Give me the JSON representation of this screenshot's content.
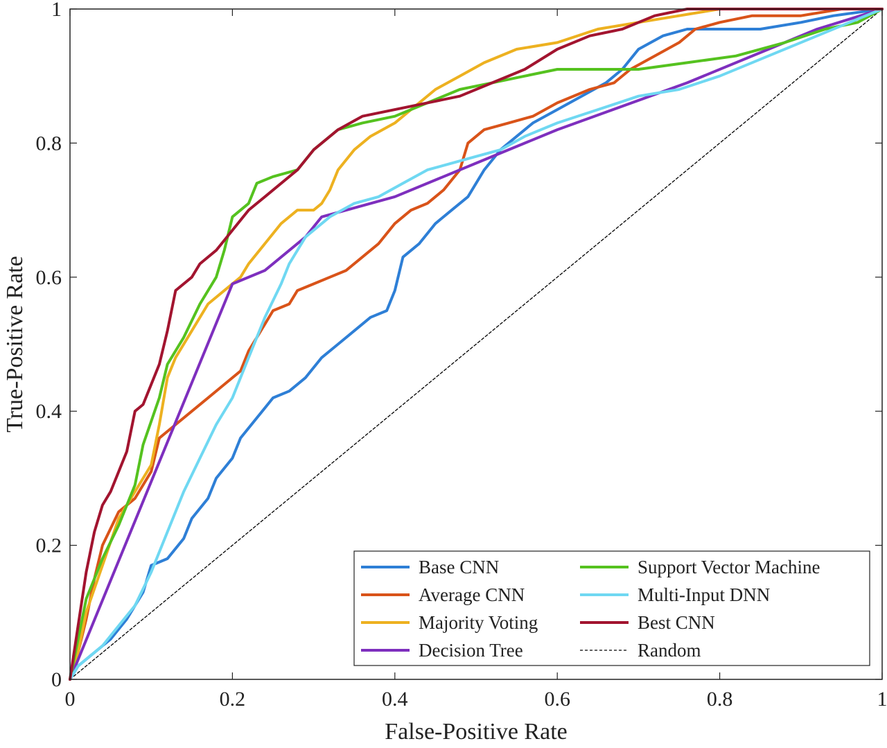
{
  "chart_data": {
    "type": "line",
    "title": "",
    "xlabel": "False-Positive Rate",
    "ylabel": "True-Positive Rate",
    "xlim": [
      0,
      1
    ],
    "ylim": [
      0,
      1
    ],
    "xticks": [
      "0",
      "0.2",
      "0.4",
      "0.6",
      "0.8",
      "1"
    ],
    "yticks": [
      "0",
      "0.2",
      "0.4",
      "0.6",
      "0.8",
      "1"
    ],
    "grid": false,
    "legend_position": "bottom-right",
    "series": [
      {
        "name": "Base CNN",
        "color": "#2e7fd6",
        "points": [
          [
            0,
            0
          ],
          [
            0.01,
            0.02
          ],
          [
            0.03,
            0.04
          ],
          [
            0.05,
            0.06
          ],
          [
            0.07,
            0.09
          ],
          [
            0.09,
            0.13
          ],
          [
            0.1,
            0.17
          ],
          [
            0.12,
            0.18
          ],
          [
            0.14,
            0.21
          ],
          [
            0.15,
            0.24
          ],
          [
            0.17,
            0.27
          ],
          [
            0.18,
            0.3
          ],
          [
            0.2,
            0.33
          ],
          [
            0.21,
            0.36
          ],
          [
            0.23,
            0.39
          ],
          [
            0.25,
            0.42
          ],
          [
            0.27,
            0.43
          ],
          [
            0.29,
            0.45
          ],
          [
            0.31,
            0.48
          ],
          [
            0.33,
            0.5
          ],
          [
            0.35,
            0.52
          ],
          [
            0.37,
            0.54
          ],
          [
            0.39,
            0.55
          ],
          [
            0.4,
            0.58
          ],
          [
            0.41,
            0.63
          ],
          [
            0.43,
            0.65
          ],
          [
            0.45,
            0.68
          ],
          [
            0.47,
            0.7
          ],
          [
            0.49,
            0.72
          ],
          [
            0.51,
            0.76
          ],
          [
            0.53,
            0.79
          ],
          [
            0.55,
            0.81
          ],
          [
            0.57,
            0.83
          ],
          [
            0.6,
            0.85
          ],
          [
            0.63,
            0.87
          ],
          [
            0.66,
            0.89
          ],
          [
            0.68,
            0.91
          ],
          [
            0.7,
            0.94
          ],
          [
            0.73,
            0.96
          ],
          [
            0.76,
            0.97
          ],
          [
            0.8,
            0.97
          ],
          [
            0.85,
            0.97
          ],
          [
            0.9,
            0.98
          ],
          [
            0.94,
            0.99
          ],
          [
            1,
            1
          ]
        ]
      },
      {
        "name": "Average CNN",
        "color": "#d95319",
        "points": [
          [
            0,
            0
          ],
          [
            0.01,
            0.04
          ],
          [
            0.02,
            0.09
          ],
          [
            0.03,
            0.15
          ],
          [
            0.04,
            0.2
          ],
          [
            0.06,
            0.25
          ],
          [
            0.08,
            0.27
          ],
          [
            0.1,
            0.31
          ],
          [
            0.11,
            0.36
          ],
          [
            0.13,
            0.38
          ],
          [
            0.15,
            0.4
          ],
          [
            0.17,
            0.42
          ],
          [
            0.19,
            0.44
          ],
          [
            0.21,
            0.46
          ],
          [
            0.22,
            0.49
          ],
          [
            0.23,
            0.51
          ],
          [
            0.25,
            0.55
          ],
          [
            0.27,
            0.56
          ],
          [
            0.28,
            0.58
          ],
          [
            0.3,
            0.59
          ],
          [
            0.32,
            0.6
          ],
          [
            0.34,
            0.61
          ],
          [
            0.36,
            0.63
          ],
          [
            0.38,
            0.65
          ],
          [
            0.4,
            0.68
          ],
          [
            0.42,
            0.7
          ],
          [
            0.44,
            0.71
          ],
          [
            0.46,
            0.73
          ],
          [
            0.48,
            0.76
          ],
          [
            0.49,
            0.8
          ],
          [
            0.51,
            0.82
          ],
          [
            0.54,
            0.83
          ],
          [
            0.57,
            0.84
          ],
          [
            0.6,
            0.86
          ],
          [
            0.64,
            0.88
          ],
          [
            0.67,
            0.89
          ],
          [
            0.69,
            0.91
          ],
          [
            0.72,
            0.93
          ],
          [
            0.75,
            0.95
          ],
          [
            0.77,
            0.97
          ],
          [
            0.8,
            0.98
          ],
          [
            0.84,
            0.99
          ],
          [
            0.9,
            0.99
          ],
          [
            0.95,
            1
          ],
          [
            1,
            1
          ]
        ]
      },
      {
        "name": "Majority Voting",
        "color": "#edb120",
        "points": [
          [
            0,
            0
          ],
          [
            0.01,
            0.04
          ],
          [
            0.02,
            0.1
          ],
          [
            0.04,
            0.17
          ],
          [
            0.06,
            0.24
          ],
          [
            0.08,
            0.28
          ],
          [
            0.1,
            0.32
          ],
          [
            0.11,
            0.38
          ],
          [
            0.12,
            0.45
          ],
          [
            0.13,
            0.48
          ],
          [
            0.15,
            0.52
          ],
          [
            0.17,
            0.56
          ],
          [
            0.19,
            0.58
          ],
          [
            0.21,
            0.6
          ],
          [
            0.22,
            0.62
          ],
          [
            0.24,
            0.65
          ],
          [
            0.26,
            0.68
          ],
          [
            0.28,
            0.7
          ],
          [
            0.3,
            0.7
          ],
          [
            0.31,
            0.71
          ],
          [
            0.32,
            0.73
          ],
          [
            0.33,
            0.76
          ],
          [
            0.35,
            0.79
          ],
          [
            0.37,
            0.81
          ],
          [
            0.4,
            0.83
          ],
          [
            0.42,
            0.85
          ],
          [
            0.45,
            0.88
          ],
          [
            0.48,
            0.9
          ],
          [
            0.51,
            0.92
          ],
          [
            0.55,
            0.94
          ],
          [
            0.6,
            0.95
          ],
          [
            0.65,
            0.97
          ],
          [
            0.7,
            0.98
          ],
          [
            0.75,
            0.99
          ],
          [
            0.8,
            1
          ],
          [
            0.85,
            1
          ],
          [
            0.9,
            1
          ],
          [
            1,
            1
          ]
        ]
      },
      {
        "name": "Decision Tree",
        "color": "#7e2fbe",
        "points": [
          [
            0,
            0
          ],
          [
            0.2,
            0.59
          ],
          [
            0.24,
            0.61
          ],
          [
            0.29,
            0.66
          ],
          [
            0.31,
            0.69
          ],
          [
            0.4,
            0.72
          ],
          [
            0.5,
            0.77
          ],
          [
            0.6,
            0.82
          ],
          [
            0.76,
            0.89
          ],
          [
            0.92,
            0.97
          ],
          [
            1,
            1
          ]
        ]
      },
      {
        "name": "Support Vector Machine",
        "color": "#55c21f",
        "points": [
          [
            0,
            0
          ],
          [
            0.01,
            0.06
          ],
          [
            0.02,
            0.12
          ],
          [
            0.04,
            0.18
          ],
          [
            0.06,
            0.23
          ],
          [
            0.08,
            0.29
          ],
          [
            0.09,
            0.35
          ],
          [
            0.11,
            0.42
          ],
          [
            0.12,
            0.47
          ],
          [
            0.14,
            0.51
          ],
          [
            0.16,
            0.56
          ],
          [
            0.18,
            0.6
          ],
          [
            0.19,
            0.64
          ],
          [
            0.2,
            0.69
          ],
          [
            0.22,
            0.71
          ],
          [
            0.23,
            0.74
          ],
          [
            0.25,
            0.75
          ],
          [
            0.28,
            0.76
          ],
          [
            0.3,
            0.79
          ],
          [
            0.33,
            0.82
          ],
          [
            0.36,
            0.83
          ],
          [
            0.4,
            0.84
          ],
          [
            0.44,
            0.86
          ],
          [
            0.48,
            0.88
          ],
          [
            0.52,
            0.89
          ],
          [
            0.56,
            0.9
          ],
          [
            0.6,
            0.91
          ],
          [
            0.65,
            0.91
          ],
          [
            0.7,
            0.91
          ],
          [
            0.76,
            0.92
          ],
          [
            0.82,
            0.93
          ],
          [
            0.88,
            0.95
          ],
          [
            0.93,
            0.97
          ],
          [
            0.97,
            0.98
          ],
          [
            1,
            1
          ]
        ]
      },
      {
        "name": "Multi-Input DNN",
        "color": "#6fd8f2",
        "points": [
          [
            0,
            0
          ],
          [
            0.01,
            0.02
          ],
          [
            0.02,
            0.03
          ],
          [
            0.04,
            0.05
          ],
          [
            0.06,
            0.08
          ],
          [
            0.08,
            0.11
          ],
          [
            0.1,
            0.16
          ],
          [
            0.12,
            0.22
          ],
          [
            0.14,
            0.28
          ],
          [
            0.16,
            0.33
          ],
          [
            0.18,
            0.38
          ],
          [
            0.2,
            0.42
          ],
          [
            0.22,
            0.48
          ],
          [
            0.24,
            0.54
          ],
          [
            0.26,
            0.59
          ],
          [
            0.27,
            0.62
          ],
          [
            0.29,
            0.66
          ],
          [
            0.32,
            0.69
          ],
          [
            0.35,
            0.71
          ],
          [
            0.38,
            0.72
          ],
          [
            0.41,
            0.74
          ],
          [
            0.44,
            0.76
          ],
          [
            0.47,
            0.77
          ],
          [
            0.5,
            0.78
          ],
          [
            0.53,
            0.79
          ],
          [
            0.56,
            0.81
          ],
          [
            0.6,
            0.83
          ],
          [
            0.65,
            0.85
          ],
          [
            0.7,
            0.87
          ],
          [
            0.75,
            0.88
          ],
          [
            0.8,
            0.9
          ],
          [
            0.86,
            0.93
          ],
          [
            0.92,
            0.96
          ],
          [
            0.96,
            0.98
          ],
          [
            1,
            1
          ]
        ]
      },
      {
        "name": "Best CNN",
        "color": "#a2142f",
        "points": [
          [
            0,
            0
          ],
          [
            0.01,
            0.08
          ],
          [
            0.02,
            0.16
          ],
          [
            0.03,
            0.22
          ],
          [
            0.04,
            0.26
          ],
          [
            0.05,
            0.28
          ],
          [
            0.06,
            0.31
          ],
          [
            0.07,
            0.34
          ],
          [
            0.08,
            0.4
          ],
          [
            0.09,
            0.41
          ],
          [
            0.1,
            0.44
          ],
          [
            0.11,
            0.47
          ],
          [
            0.12,
            0.52
          ],
          [
            0.13,
            0.58
          ],
          [
            0.15,
            0.6
          ],
          [
            0.16,
            0.62
          ],
          [
            0.18,
            0.64
          ],
          [
            0.2,
            0.67
          ],
          [
            0.22,
            0.7
          ],
          [
            0.24,
            0.72
          ],
          [
            0.26,
            0.74
          ],
          [
            0.28,
            0.76
          ],
          [
            0.3,
            0.79
          ],
          [
            0.33,
            0.82
          ],
          [
            0.36,
            0.84
          ],
          [
            0.4,
            0.85
          ],
          [
            0.44,
            0.86
          ],
          [
            0.48,
            0.87
          ],
          [
            0.52,
            0.89
          ],
          [
            0.56,
            0.91
          ],
          [
            0.6,
            0.94
          ],
          [
            0.64,
            0.96
          ],
          [
            0.68,
            0.97
          ],
          [
            0.72,
            0.99
          ],
          [
            0.76,
            1
          ],
          [
            0.85,
            1
          ],
          [
            1,
            1
          ]
        ]
      },
      {
        "name": "Random",
        "color": "#000000",
        "dashed": true,
        "points": [
          [
            0,
            0
          ],
          [
            1,
            1
          ]
        ]
      }
    ]
  }
}
